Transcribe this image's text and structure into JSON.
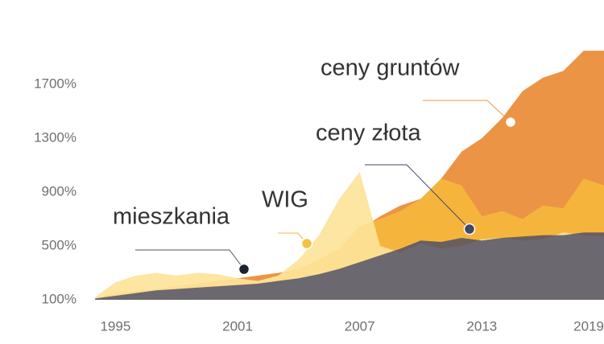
{
  "chart_data": {
    "type": "area",
    "x": [
      1994,
      1995,
      1996,
      1997,
      1998,
      1999,
      2000,
      2001,
      2002,
      2003,
      2004,
      2005,
      2006,
      2007,
      2008,
      2009,
      2010,
      2011,
      2012,
      2013,
      2014,
      2015,
      2016,
      2017,
      2018,
      2019
    ],
    "series": [
      {
        "name": "ceny gruntów",
        "color": "#ec9445",
        "values": [
          110,
          140,
          160,
          180,
          200,
          220,
          240,
          260,
          280,
          300,
          330,
          380,
          450,
          620,
          720,
          800,
          850,
          1000,
          1200,
          1300,
          1450,
          1650,
          1750,
          1800,
          1950,
          1950
        ]
      },
      {
        "name": "ceny złota",
        "color": "#f5b53c",
        "values": [
          110,
          150,
          170,
          180,
          190,
          200,
          210,
          220,
          240,
          280,
          330,
          400,
          480,
          650,
          700,
          760,
          850,
          1000,
          950,
          720,
          760,
          700,
          800,
          780,
          1000,
          950
        ]
      },
      {
        "name": "WIG",
        "color": "#fde39a",
        "values": [
          120,
          230,
          280,
          300,
          280,
          300,
          290,
          260,
          240,
          280,
          400,
          580,
          850,
          1050,
          500,
          450,
          520,
          480,
          500,
          550,
          560,
          540,
          550,
          600,
          580,
          570
        ]
      },
      {
        "name": "mieszkania",
        "color": "#414766",
        "values": [
          110,
          130,
          150,
          170,
          180,
          190,
          200,
          210,
          220,
          240,
          260,
          290,
          330,
          380,
          430,
          480,
          540,
          530,
          560,
          540,
          560,
          570,
          580,
          580,
          600,
          600
        ]
      }
    ],
    "xlim": [
      1993.6,
      2019
    ],
    "xticks": [
      1995,
      2001,
      2007,
      2013,
      2019
    ],
    "ylim": [
      100,
      2100
    ],
    "yticks": [
      {
        "value": 100,
        "label": "100%"
      },
      {
        "value": 500,
        "label": "500%"
      },
      {
        "value": 900,
        "label": "900%"
      },
      {
        "value": 1300,
        "label": "1300%"
      },
      {
        "value": 1700,
        "label": "1700%"
      }
    ]
  }
}
